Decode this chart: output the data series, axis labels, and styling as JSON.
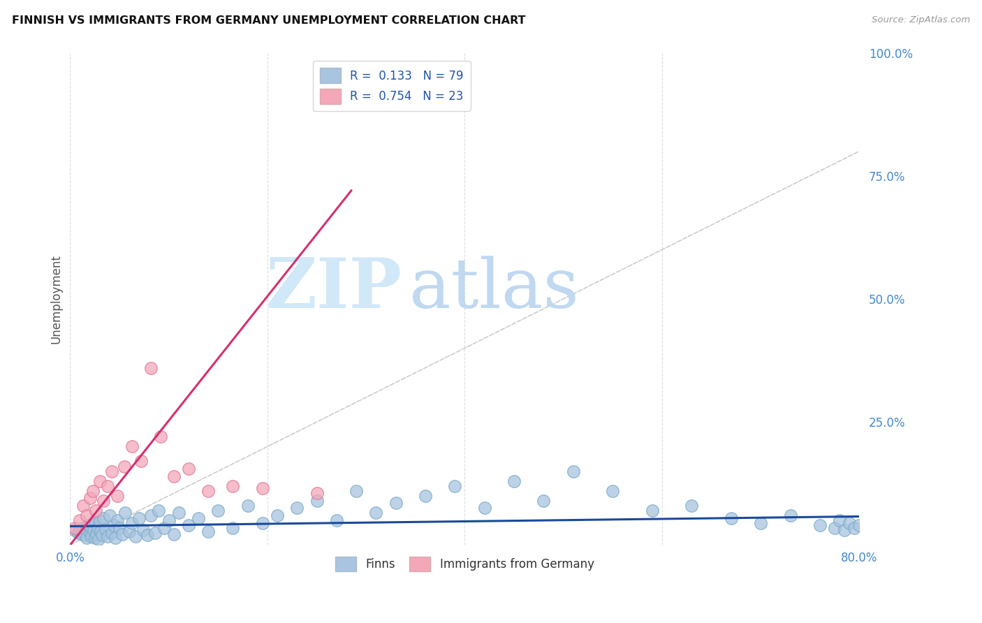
{
  "title": "FINNISH VS IMMIGRANTS FROM GERMANY UNEMPLOYMENT CORRELATION CHART",
  "source": "Source: ZipAtlas.com",
  "ylabel": "Unemployment",
  "xlim": [
    0.0,
    0.8
  ],
  "ylim": [
    0.0,
    1.0
  ],
  "xticks": [
    0.0,
    0.2,
    0.4,
    0.6,
    0.8
  ],
  "xticklabels": [
    "0.0%",
    "",
    "",
    "",
    "80.0%"
  ],
  "yticks": [
    0.0,
    0.25,
    0.5,
    0.75,
    1.0
  ],
  "yticklabels": [
    "",
    "25.0%",
    "50.0%",
    "75.0%",
    "100.0%"
  ],
  "finns_R": 0.133,
  "finns_N": 79,
  "immigrants_R": 0.754,
  "immigrants_N": 23,
  "finns_color": "#a8c4e0",
  "finns_edge_color": "#7aaac8",
  "immigrants_color": "#f4a7b9",
  "immigrants_edge_color": "#e07898",
  "finns_line_color": "#1a4a9a",
  "immigrants_line_color": "#d43070",
  "diagonal_color": "#cccccc",
  "background_color": "#ffffff",
  "grid_color": "#dddddd",
  "tick_label_color": "#4488cc",
  "title_color": "#111111",
  "source_color": "#999999",
  "ylabel_color": "#555555",
  "watermark_zip_color": "#d0e8f8",
  "watermark_atlas_color": "#c0d8f0",
  "finns_x": [
    0.005,
    0.008,
    0.01,
    0.012,
    0.013,
    0.015,
    0.016,
    0.017,
    0.018,
    0.02,
    0.021,
    0.022,
    0.023,
    0.024,
    0.025,
    0.026,
    0.027,
    0.028,
    0.029,
    0.03,
    0.031,
    0.032,
    0.034,
    0.036,
    0.038,
    0.04,
    0.042,
    0.044,
    0.046,
    0.048,
    0.05,
    0.053,
    0.056,
    0.06,
    0.063,
    0.066,
    0.07,
    0.074,
    0.078,
    0.082,
    0.086,
    0.09,
    0.095,
    0.1,
    0.105,
    0.11,
    0.12,
    0.13,
    0.14,
    0.15,
    0.165,
    0.18,
    0.195,
    0.21,
    0.23,
    0.25,
    0.27,
    0.29,
    0.31,
    0.33,
    0.36,
    0.39,
    0.42,
    0.45,
    0.48,
    0.51,
    0.55,
    0.59,
    0.63,
    0.67,
    0.7,
    0.73,
    0.76,
    0.775,
    0.78,
    0.785,
    0.79,
    0.795,
    0.8
  ],
  "finns_y": [
    0.03,
    0.025,
    0.028,
    0.022,
    0.035,
    0.02,
    0.032,
    0.015,
    0.04,
    0.025,
    0.038,
    0.018,
    0.042,
    0.03,
    0.015,
    0.045,
    0.022,
    0.035,
    0.012,
    0.048,
    0.028,
    0.02,
    0.055,
    0.032,
    0.018,
    0.06,
    0.025,
    0.04,
    0.015,
    0.05,
    0.035,
    0.022,
    0.065,
    0.028,
    0.045,
    0.018,
    0.055,
    0.03,
    0.02,
    0.06,
    0.025,
    0.07,
    0.035,
    0.05,
    0.022,
    0.065,
    0.04,
    0.055,
    0.028,
    0.07,
    0.035,
    0.08,
    0.045,
    0.06,
    0.075,
    0.09,
    0.05,
    0.11,
    0.065,
    0.085,
    0.1,
    0.12,
    0.075,
    0.13,
    0.09,
    0.15,
    0.11,
    0.07,
    0.08,
    0.055,
    0.045,
    0.06,
    0.04,
    0.035,
    0.05,
    0.03,
    0.045,
    0.035,
    0.04
  ],
  "immigrants_x": [
    0.005,
    0.01,
    0.013,
    0.017,
    0.02,
    0.023,
    0.026,
    0.03,
    0.034,
    0.038,
    0.042,
    0.048,
    0.055,
    0.063,
    0.072,
    0.082,
    0.092,
    0.105,
    0.12,
    0.14,
    0.165,
    0.195,
    0.25
  ],
  "immigrants_y": [
    0.035,
    0.05,
    0.08,
    0.06,
    0.095,
    0.11,
    0.07,
    0.13,
    0.09,
    0.12,
    0.15,
    0.1,
    0.16,
    0.2,
    0.17,
    0.36,
    0.22,
    0.14,
    0.155,
    0.11,
    0.12,
    0.115,
    0.105
  ],
  "finns_trend_x": [
    0.0,
    0.8
  ],
  "finns_trend_y": [
    0.038,
    0.058
  ],
  "immigrants_trend_x": [
    0.0,
    0.285
  ],
  "immigrants_trend_y": [
    0.0,
    0.72
  ]
}
